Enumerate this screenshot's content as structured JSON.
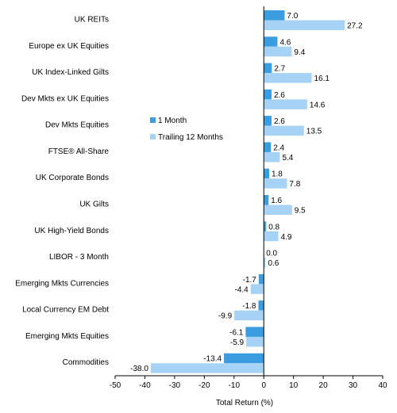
{
  "chart_data": {
    "type": "bar",
    "orientation": "horizontal",
    "categories": [
      "UK REITs",
      "Europe ex UK Equities",
      "UK Index-Linked Gilts",
      "Dev Mkts ex UK Equities",
      "Dev Mkts Equities",
      "FTSE® All-Share",
      "UK Corporate Bonds",
      "UK Gilts",
      "UK High-Yield Bonds",
      "LIBOR - 3 Month",
      "Emerging Mkts Currencies",
      "Local Currency EM Debt",
      "Emerging Mkts Equities",
      "Commodities"
    ],
    "series": [
      {
        "name": "1 Month",
        "color": "#3b9ce0",
        "values": [
          7.0,
          4.6,
          2.7,
          2.6,
          2.6,
          2.4,
          1.8,
          1.6,
          0.8,
          0.0,
          -1.7,
          -1.8,
          -6.1,
          -13.4
        ],
        "labels": [
          "7.0",
          "4.6",
          "2.7",
          "2.6",
          "2.6",
          "2.4",
          "1.8",
          "1.6",
          "0.8",
          "0.0",
          "-1.7",
          "-1.8",
          "-6.1",
          "-13.4"
        ]
      },
      {
        "name": "Trailing 12 Months",
        "color": "#a6d3f5",
        "values": [
          27.2,
          9.4,
          16.1,
          14.6,
          13.5,
          5.4,
          7.8,
          9.5,
          4.9,
          0.6,
          -4.4,
          -9.9,
          -5.9,
          -38.0
        ],
        "labels": [
          "27.2",
          "9.4",
          "16.1",
          "14.6",
          "13.5",
          "5.4",
          "7.8",
          "9.5",
          "4.9",
          "0.6",
          "-4.4",
          "-9.9",
          "-5.9",
          "-38.0"
        ]
      }
    ],
    "xlabel": "Total Return (%)",
    "xlim": [
      -50,
      40
    ],
    "xticks": [
      -50,
      -40,
      -30,
      -20,
      -10,
      0,
      10,
      20,
      30,
      40
    ],
    "grid": false,
    "legend_position": "middle"
  }
}
